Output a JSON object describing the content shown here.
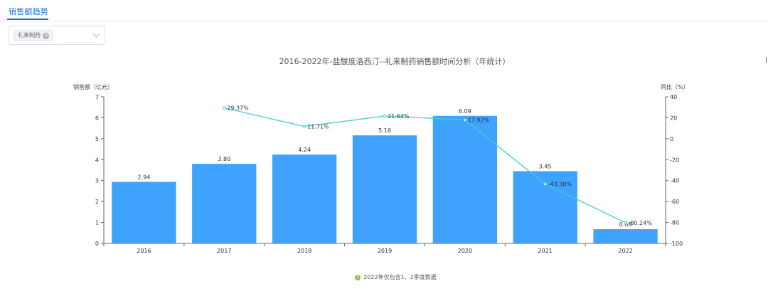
{
  "tab": {
    "label": "销售额趋势"
  },
  "filter": {
    "chip_label": "礼来制药"
  },
  "chart_data": {
    "type": "bar",
    "title": "2016-2022年-盐酸度洛西汀--礼来制药销售额时间分析（年统计）",
    "ylabel": "销售额（亿元）",
    "y2label": "同比（%）",
    "categories": [
      "2016",
      "2017",
      "2018",
      "2019",
      "2020",
      "2021",
      "2022"
    ],
    "series": [
      {
        "type": "bar",
        "values": [
          2.94,
          3.8,
          4.24,
          5.16,
          6.09,
          3.45,
          0.68
        ],
        "labels": [
          "2.94",
          "3.80",
          "4.24",
          "5.16",
          "6.09",
          "3.45",
          "0.68"
        ]
      },
      {
        "type": "line",
        "axis": "right",
        "values": [
          null,
          29.37,
          11.71,
          21.64,
          17.92,
          -43.3,
          -80.24
        ],
        "labels": [
          "",
          "29.37%",
          "11.71%",
          "21.64%",
          "17.92%",
          "-43.30%",
          "-80.24%"
        ]
      }
    ],
    "ylim": [
      0,
      7
    ],
    "yticks": [
      "0",
      "1",
      "2",
      "3",
      "4",
      "5",
      "6",
      "7"
    ],
    "y2lim": [
      -100,
      40
    ],
    "y2ticks": [
      "-100",
      "-80",
      "-60",
      "-40",
      "-20",
      "0",
      "20",
      "40"
    ],
    "colors": {
      "bar": "#3fa2fd",
      "line": "#3ccfd0"
    }
  },
  "note": {
    "text": "2022年仅包含1、2季度数据"
  }
}
